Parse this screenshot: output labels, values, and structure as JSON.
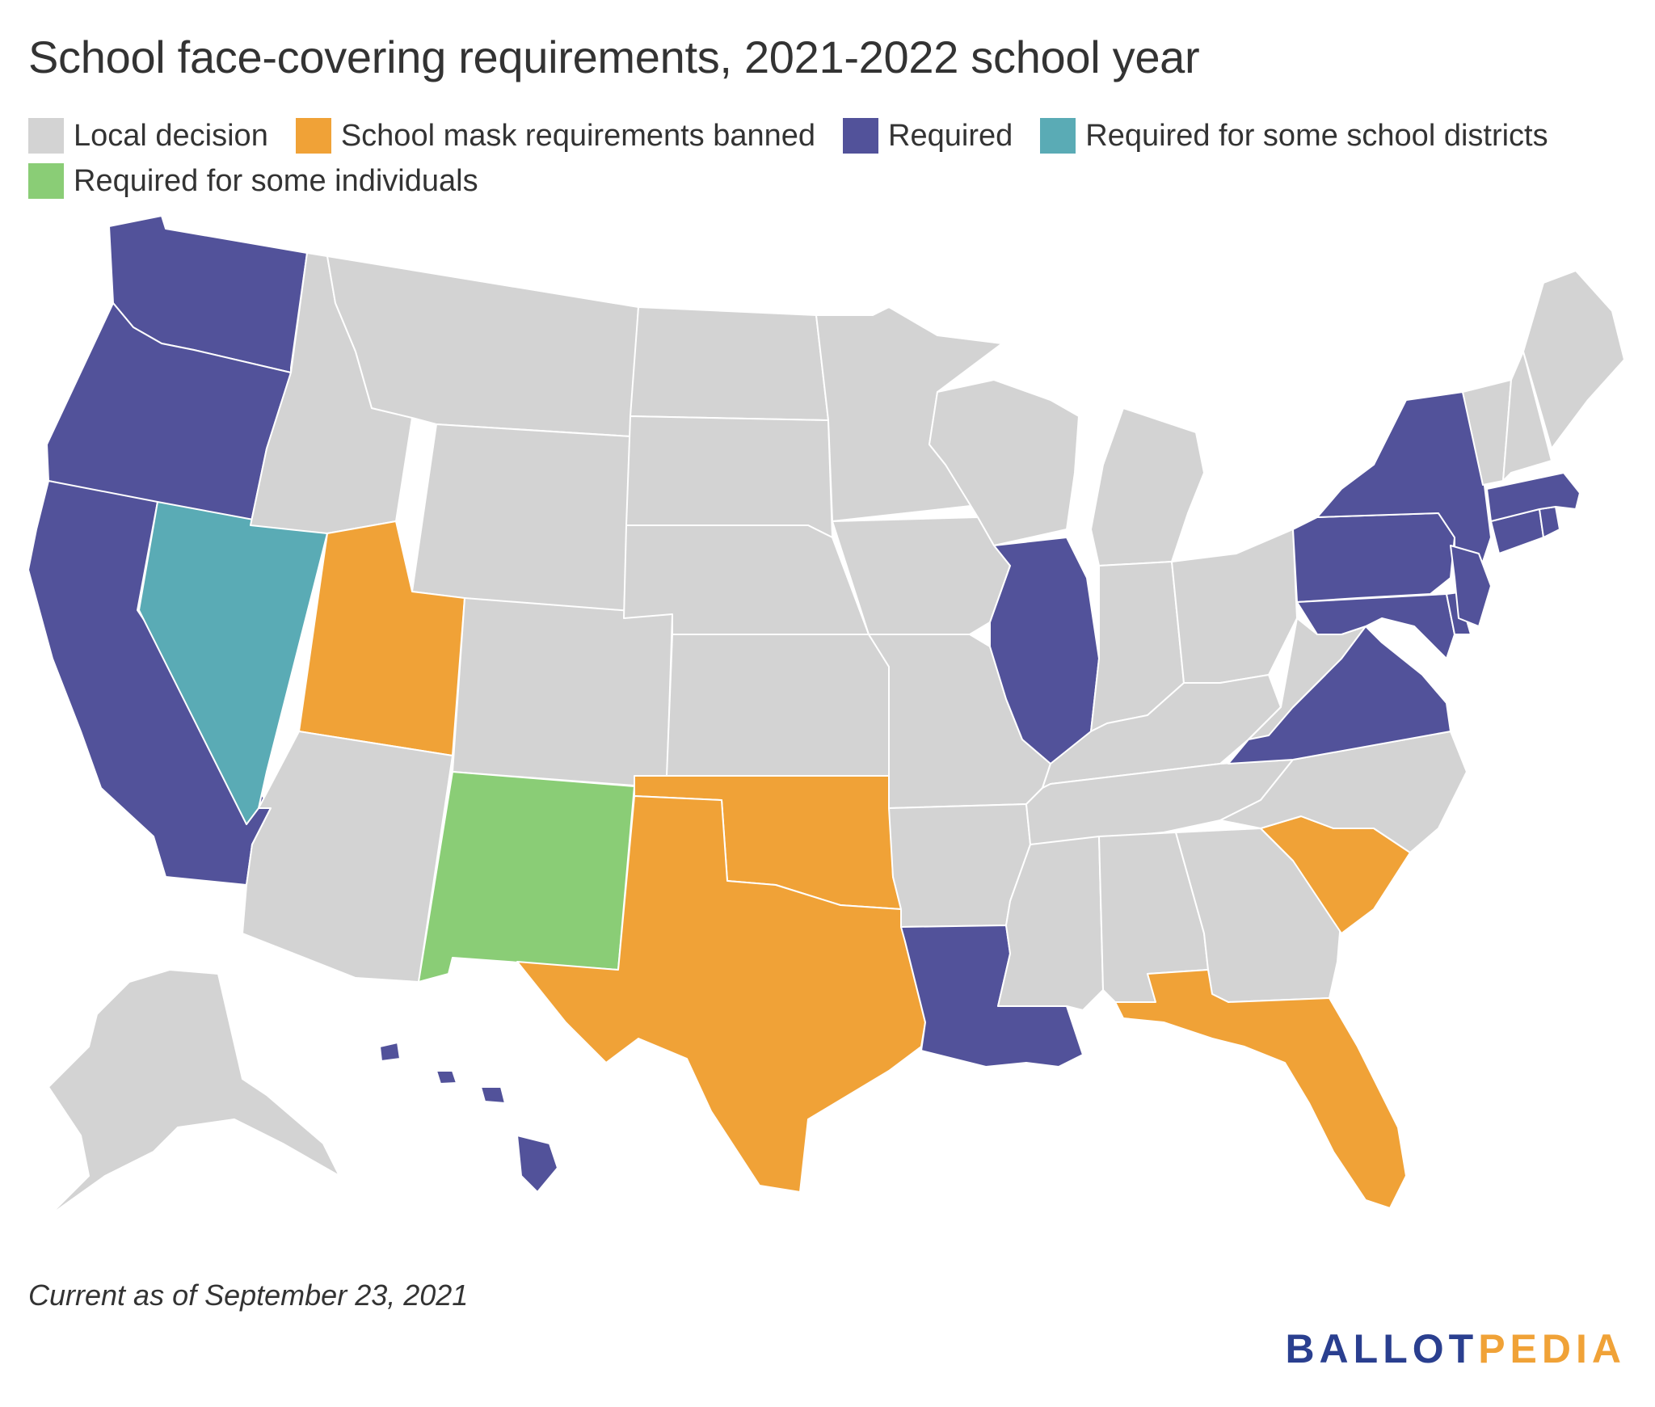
{
  "title": "School face-covering requirements, 2021-2022 school year",
  "legend": [
    {
      "key": "local",
      "label": "Local decision",
      "color": "#d3d3d3"
    },
    {
      "key": "banned",
      "label": "School mask requirements banned",
      "color": "#f0a237"
    },
    {
      "key": "required",
      "label": "Required",
      "color": "#52529a"
    },
    {
      "key": "some_districts",
      "label": "Required for some school districts",
      "color": "#5aabb5"
    },
    {
      "key": "some_individuals",
      "label": "Required for some individuals",
      "color": "#8acd76"
    }
  ],
  "states": [
    {
      "name": "Washington",
      "status": "required"
    },
    {
      "name": "Oregon",
      "status": "required"
    },
    {
      "name": "California",
      "status": "required"
    },
    {
      "name": "Nevada",
      "status": "some_districts"
    },
    {
      "name": "Idaho",
      "status": "local"
    },
    {
      "name": "Montana",
      "status": "local"
    },
    {
      "name": "Wyoming",
      "status": "local"
    },
    {
      "name": "Utah",
      "status": "banned"
    },
    {
      "name": "Arizona",
      "status": "local"
    },
    {
      "name": "Colorado",
      "status": "local"
    },
    {
      "name": "New Mexico",
      "status": "some_individuals"
    },
    {
      "name": "North Dakota",
      "status": "local"
    },
    {
      "name": "South Dakota",
      "status": "local"
    },
    {
      "name": "Nebraska",
      "status": "local"
    },
    {
      "name": "Kansas",
      "status": "local"
    },
    {
      "name": "Oklahoma",
      "status": "banned"
    },
    {
      "name": "Texas",
      "status": "banned"
    },
    {
      "name": "Minnesota",
      "status": "local"
    },
    {
      "name": "Iowa",
      "status": "local"
    },
    {
      "name": "Missouri",
      "status": "local"
    },
    {
      "name": "Arkansas",
      "status": "local"
    },
    {
      "name": "Louisiana",
      "status": "required"
    },
    {
      "name": "Wisconsin",
      "status": "local"
    },
    {
      "name": "Illinois",
      "status": "required"
    },
    {
      "name": "Michigan",
      "status": "local"
    },
    {
      "name": "Indiana",
      "status": "local"
    },
    {
      "name": "Ohio",
      "status": "local"
    },
    {
      "name": "Kentucky",
      "status": "local"
    },
    {
      "name": "Tennessee",
      "status": "local"
    },
    {
      "name": "Mississippi",
      "status": "local"
    },
    {
      "name": "Alabama",
      "status": "local"
    },
    {
      "name": "Georgia",
      "status": "local"
    },
    {
      "name": "Florida",
      "status": "banned"
    },
    {
      "name": "South Carolina",
      "status": "banned"
    },
    {
      "name": "North Carolina",
      "status": "local"
    },
    {
      "name": "Virginia",
      "status": "required"
    },
    {
      "name": "West Virginia",
      "status": "local"
    },
    {
      "name": "Pennsylvania",
      "status": "required"
    },
    {
      "name": "New York",
      "status": "required"
    },
    {
      "name": "Maryland",
      "status": "required"
    },
    {
      "name": "Delaware",
      "status": "required"
    },
    {
      "name": "New Jersey",
      "status": "required"
    },
    {
      "name": "Connecticut",
      "status": "required"
    },
    {
      "name": "Rhode Island",
      "status": "required"
    },
    {
      "name": "Massachusetts",
      "status": "required"
    },
    {
      "name": "Vermont",
      "status": "local"
    },
    {
      "name": "New Hampshire",
      "status": "local"
    },
    {
      "name": "Maine",
      "status": "local"
    },
    {
      "name": "Alaska",
      "status": "local"
    },
    {
      "name": "Hawaii",
      "status": "required"
    }
  ],
  "footnote": "Current as of September 23, 2021",
  "logo": {
    "part1": "BALLOT",
    "part2": "PEDIA"
  }
}
